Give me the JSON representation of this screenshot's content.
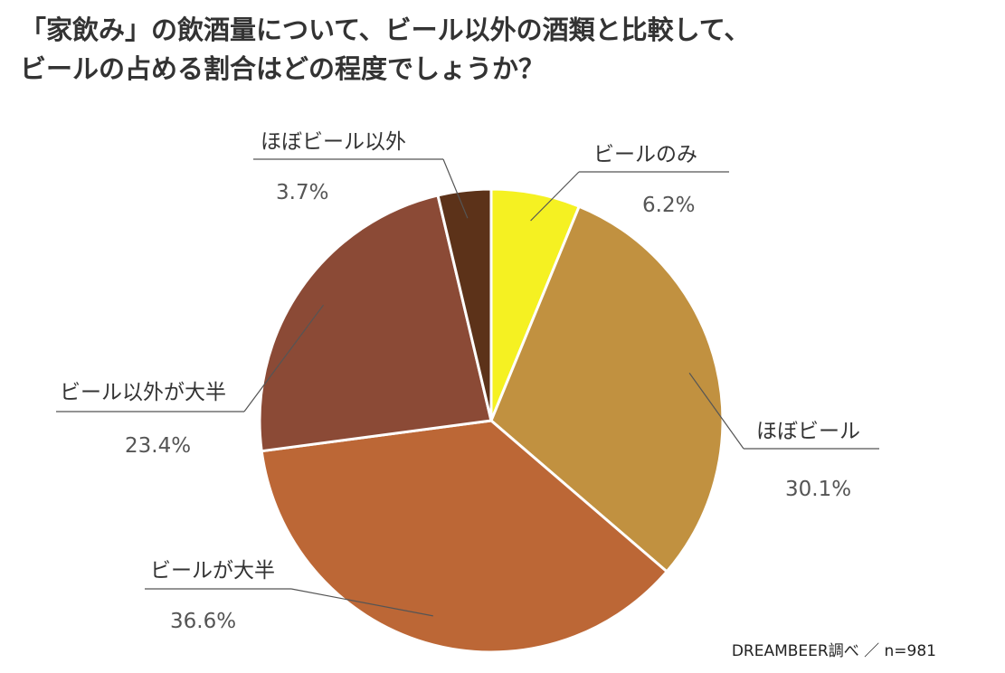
{
  "chart_data": {
    "type": "pie",
    "title_lines": [
      "「家飲み」の飲酒量について、ビール以外の酒類と比較して、",
      "ビールの占める割合はどの程度でしょうか？"
    ],
    "slices": [
      {
        "label": "ビールのみ",
        "value": 6.2,
        "value_text": "6.2%",
        "color": "#f5f122"
      },
      {
        "label": "ほぼビール",
        "value": 30.1,
        "value_text": "30.1%",
        "color": "#c19140"
      },
      {
        "label": "ビールが大半",
        "value": 36.6,
        "value_text": "36.6%",
        "color": "#bc6736"
      },
      {
        "label": "ビール以外が大半",
        "value": 23.4,
        "value_text": "23.4%",
        "color": "#8b4a36"
      },
      {
        "label": "ほぼビール以外",
        "value": 3.7,
        "value_text": "3.7%",
        "color": "#5c3219"
      }
    ],
    "start": "12 o'clock",
    "direction": "clockwise",
    "source": "DREAMBEER調べ ／ n=981"
  }
}
